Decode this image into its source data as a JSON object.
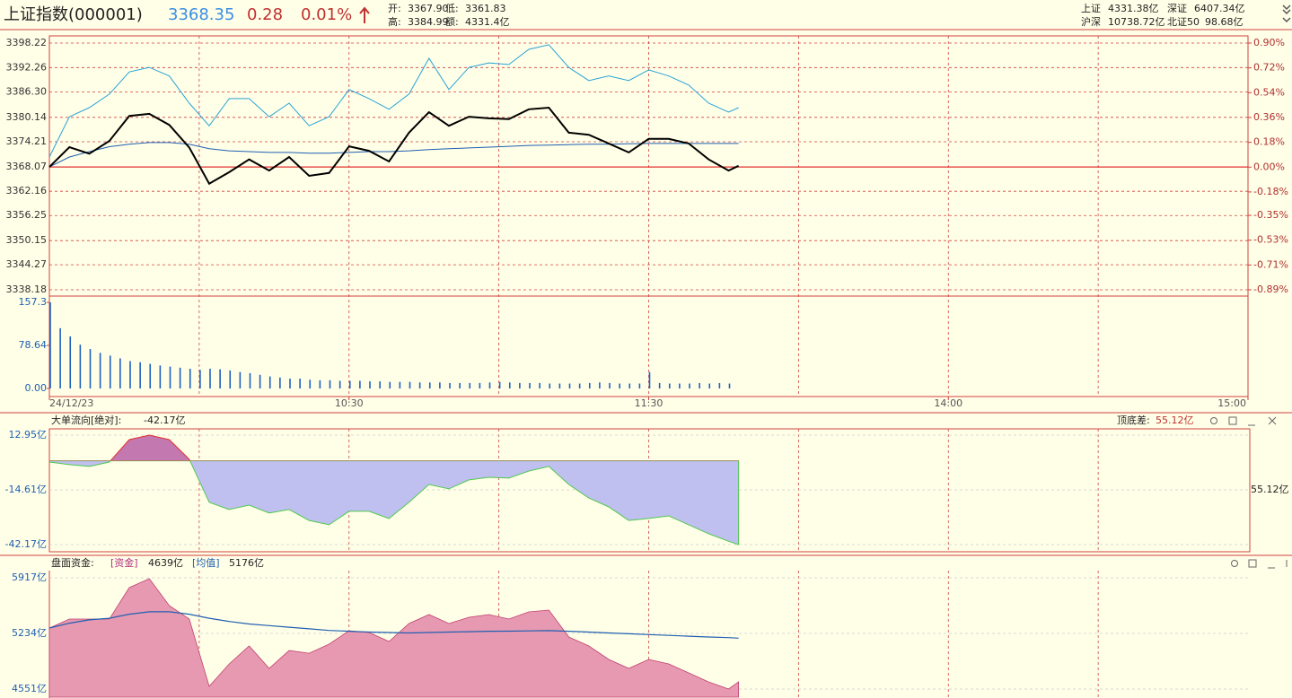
{
  "header": {
    "title": "上证指数(000001)",
    "price": "3368.35",
    "change": "0.28",
    "percent": "0.01%",
    "info": [
      {
        "label": "开:",
        "value": "3367.90"
      },
      {
        "label": "低:",
        "value": "3361.83"
      },
      {
        "label": "高:",
        "value": "3384.99"
      },
      {
        "label": "额:",
        "value": "4331.4亿"
      }
    ],
    "markets": [
      {
        "label": "上证",
        "value": "4331.38亿"
      },
      {
        "label": "深证",
        "value": "6407.34亿"
      },
      {
        "label": "沪深",
        "value": "10738.72亿"
      },
      {
        "label": "北证50",
        "value": "98.68亿"
      }
    ]
  },
  "price_panel": {
    "xlim": [
      0,
      240
    ],
    "xticks": [
      {
        "value": 0,
        "label": "24/12/23"
      },
      {
        "value": 60,
        "label": "10:30"
      },
      {
        "value": 120,
        "label": "11:30"
      },
      {
        "value": 180,
        "label": "14:00"
      },
      {
        "value": 240,
        "label": "15:00"
      }
    ],
    "grid_minutes": [
      30,
      60,
      90,
      120,
      150,
      180,
      210
    ],
    "ylim": [
      3338.18,
      3398.22
    ],
    "yticks": [
      3398.22,
      3392.26,
      {
        "value": 3386.3,
        "label": "3386.30"
      },
      3380.14,
      3374.21,
      3368.07,
      3362.16,
      3356.25,
      3350.15,
      3344.27,
      3338.18
    ],
    "y2lim": [
      -0.89,
      0.9
    ],
    "y2ticks": [
      {
        "value": 0.9,
        "label": "0.90%"
      },
      {
        "value": 0.72,
        "label": "0.72%"
      },
      {
        "value": 0.54,
        "label": "0.54%"
      },
      {
        "value": 0.36,
        "label": "0.36%"
      },
      {
        "value": 0.18,
        "label": "0.18%"
      },
      {
        "value": 0.0,
        "label": "0.00%"
      },
      {
        "value": -0.18,
        "label": "-0.18%"
      },
      {
        "value": -0.35,
        "label": "-0.35%"
      },
      {
        "value": -0.53,
        "label": "-0.53%"
      },
      {
        "value": -0.71,
        "label": "-0.71%"
      },
      {
        "value": -0.89,
        "label": "-0.89%"
      }
    ],
    "minutes": [
      0,
      4,
      8,
      12,
      16,
      20,
      24,
      28,
      32,
      36,
      40,
      44,
      48,
      52,
      56,
      60,
      64,
      68,
      72,
      76,
      80,
      84,
      88,
      92,
      96,
      100,
      104,
      108,
      112,
      116,
      120,
      124,
      128,
      132,
      136,
      138
    ],
    "series": [
      {
        "color": "#29a3d6",
        "values": [
          3370.5,
          3380.3,
          3382.5,
          3385.8,
          3391.2,
          3392.3,
          3390.2,
          3383.6,
          3378.1,
          3384.7,
          3384.7,
          3380.3,
          3383.6,
          3378.1,
          3380.3,
          3386.9,
          3384.7,
          3382.1,
          3385.8,
          3394.5,
          3386.9,
          3392.3,
          3393.4,
          3393.0,
          3396.7,
          3397.8,
          3392.3,
          3389.1,
          3390.2,
          3389.1,
          3391.7,
          3390.2,
          3388.0,
          3383.6,
          3381.4,
          3382.5
        ]
      },
      {
        "color": "#1f5fb0",
        "values": [
          3368.07,
          3370.5,
          3371.8,
          3373.0,
          3373.6,
          3374.0,
          3374.0,
          3373.6,
          3372.5,
          3372.0,
          3371.8,
          3371.6,
          3371.6,
          3371.4,
          3371.4,
          3371.6,
          3371.8,
          3371.8,
          3372.0,
          3372.3,
          3372.5,
          3372.7,
          3372.9,
          3373.1,
          3373.3,
          3373.4,
          3373.5,
          3373.6,
          3373.6,
          3373.7,
          3373.8,
          3373.8,
          3373.8,
          3373.8,
          3373.8,
          3373.8
        ]
      },
      {
        "color": "#000000",
        "values": [
          3368.07,
          3372.9,
          3371.3,
          3374.4,
          3380.5,
          3381.0,
          3378.3,
          3372.8,
          3364.0,
          3366.8,
          3369.9,
          3367.2,
          3370.5,
          3365.9,
          3366.6,
          3373.1,
          3372.0,
          3369.4,
          3376.4,
          3381.4,
          3378.1,
          3380.3,
          3379.9,
          3379.7,
          3382.1,
          3382.5,
          3376.4,
          3375.9,
          3373.8,
          3371.6,
          3374.9,
          3374.9,
          3373.8,
          3369.9,
          3367.2,
          3368.35
        ]
      }
    ]
  },
  "volume_panel": {
    "ylim": [
      0,
      157.3
    ],
    "yticks": [
      {
        "value": 0,
        "label": "0.00"
      },
      78.64,
      157.3
    ],
    "color": "#2060c0",
    "minutes": [
      0,
      2,
      4,
      6,
      8,
      10,
      12,
      14,
      16,
      18,
      20,
      22,
      24,
      26,
      28,
      30,
      32,
      34,
      36,
      38,
      40,
      42,
      44,
      46,
      48,
      50,
      52,
      54,
      56,
      58,
      60,
      62,
      64,
      66,
      68,
      70,
      72,
      74,
      76,
      78,
      80,
      82,
      84,
      86,
      88,
      90,
      92,
      94,
      96,
      98,
      100,
      102,
      104,
      106,
      108,
      110,
      112,
      114,
      116,
      118,
      120,
      122,
      124,
      126,
      128,
      130,
      132,
      134,
      136
    ],
    "values": [
      157.3,
      110,
      95,
      80,
      72,
      65,
      60,
      55,
      50,
      48,
      45,
      42,
      40,
      38,
      36,
      34,
      36,
      35,
      33,
      30,
      28,
      25,
      22,
      20,
      18,
      18,
      16,
      15,
      15,
      14,
      14,
      14,
      13,
      13,
      12,
      12,
      12,
      11,
      11,
      11,
      10,
      10,
      10,
      10,
      11,
      12,
      11,
      10,
      10,
      10,
      9,
      9,
      9,
      9,
      10,
      11,
      10,
      9,
      9,
      9,
      30,
      10,
      9,
      9,
      9,
      10,
      9,
      10,
      9
    ]
  },
  "flow_panel": {
    "title": "大单流向[绝对]:",
    "current": "-42.17亿",
    "spread_label": "顶底差:",
    "spread": "55.12亿",
    "right_label": "55.12亿",
    "ylim": [
      -42.17,
      12.95
    ],
    "yticks": [
      {
        "value": 12.95,
        "label": "12.95亿"
      },
      {
        "value": -14.61,
        "label": "-14.61亿"
      },
      {
        "value": -42.17,
        "label": "-42.17亿"
      }
    ],
    "values": [
      -0.6,
      -1.9,
      -2.8,
      -0.6,
      10.7,
      12.95,
      10.7,
      0.8,
      -20.9,
      -24.5,
      -22.3,
      -26.3,
      -24.5,
      -30.0,
      -32.2,
      -25.4,
      -25.4,
      -29.0,
      -20.9,
      -11.9,
      -14.1,
      -9.6,
      -8.3,
      -8.7,
      -5.1,
      -2.8,
      -11.9,
      -18.7,
      -23.2,
      -30.0,
      -29.0,
      -27.7,
      -32.2,
      -36.7,
      -40.5,
      -42.17
    ]
  },
  "capital_panel": {
    "title": "盘面资金:",
    "fund_label": "[资金]",
    "fund": "4639亿",
    "mean_label": "[均值]",
    "mean": "5176亿",
    "ylim": [
      4551,
      5917
    ],
    "yticks": [
      {
        "value": 5917,
        "label": "5917亿"
      },
      {
        "value": 5234,
        "label": "5234亿"
      },
      {
        "value": 4551,
        "label": "4551亿"
      }
    ],
    "fund_values": [
      5300,
      5410,
      5410,
      5410,
      5796,
      5906,
      5575,
      5410,
      4584,
      4859,
      5080,
      4804,
      5024,
      4991,
      5102,
      5267,
      5245,
      5135,
      5355,
      5465,
      5355,
      5432,
      5465,
      5410,
      5498,
      5520,
      5190,
      5080,
      4914,
      4804,
      4914,
      4859,
      4749,
      4638,
      4551,
      4639
    ],
    "mean_values": [
      5300,
      5360,
      5400,
      5420,
      5470,
      5500,
      5500,
      5470,
      5420,
      5380,
      5350,
      5330,
      5310,
      5290,
      5270,
      5260,
      5250,
      5245,
      5240,
      5245,
      5250,
      5255,
      5260,
      5262,
      5265,
      5268,
      5260,
      5250,
      5240,
      5230,
      5220,
      5210,
      5200,
      5190,
      5182,
      5176
    ]
  }
}
